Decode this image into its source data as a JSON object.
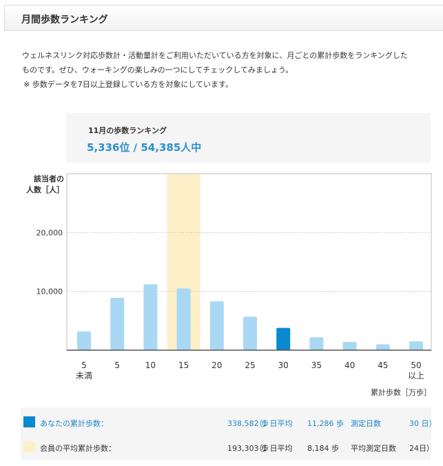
{
  "header": {
    "title": "月間歩数ランキング"
  },
  "intro": {
    "line1": "ウェルネスリンク対応歩数計・活動量計をご利用いただいている方を対象に、月ごとの累計歩数をランキングした",
    "line2": "ものです。ぜひ、ウォーキングの楽しみの一つにしてチェックしてみましょう。",
    "note": "※ 歩数データを7日以上登録している方を対象にしています。"
  },
  "ranking": {
    "label": "11月の歩数ランキング",
    "value": "5,336位 / 54,385人中"
  },
  "colors": {
    "user_bar": "#0a88d0",
    "bar": "#a8d8f4",
    "highlight": "#fdf0c8",
    "accent": "#2a8fd0"
  },
  "chart_data": {
    "type": "bar",
    "ylabel_line1": "該当者の",
    "ylabel_line2": "人数［人］",
    "xlabel": "累計歩数［万歩］",
    "yticks": [
      "20,000",
      "10,000"
    ],
    "ytick_values": [
      20000,
      10000
    ],
    "ylim": [
      0,
      30000
    ],
    "grid": "horizontal dotted",
    "categories": [
      [
        "5",
        "未満"
      ],
      [
        "5"
      ],
      [
        "10"
      ],
      [
        "15"
      ],
      [
        "20"
      ],
      [
        "25"
      ],
      [
        "30"
      ],
      [
        "35"
      ],
      [
        "40"
      ],
      [
        "45"
      ],
      [
        "50",
        "以上"
      ]
    ],
    "values": [
      3200,
      8900,
      11200,
      10500,
      8300,
      5700,
      3800,
      2200,
      1400,
      1000,
      1500
    ],
    "user_category_index": 6,
    "average_category_index": 3
  },
  "legend": {
    "user": {
      "label": "あなたの累計歩数：",
      "steps": "338,582 歩",
      "avg_label": "（1 日平均",
      "avg_value": "11,286 歩",
      "days_label": "測定日数",
      "days_value": "30 日）"
    },
    "average": {
      "label": "会員の平均累計歩数：",
      "steps": "193,303 歩",
      "avg_label": "（1 日平均",
      "avg_value": "8,184 歩",
      "days_label": "平均測定日数",
      "days_value": "24日）"
    }
  }
}
